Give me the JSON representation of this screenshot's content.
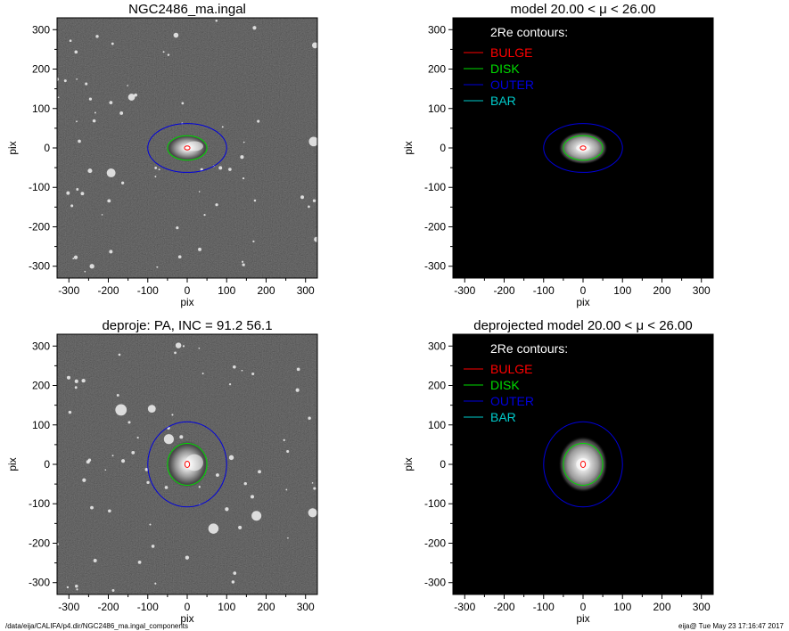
{
  "panels": [
    {
      "id": "observed",
      "title": "NGC2486_ma.ingal",
      "kind": "galaxy-image",
      "show_legend": false,
      "ellipses": {
        "bulge": {
          "a": 7,
          "b": 5
        },
        "disk": {
          "a": 50,
          "b": 31
        },
        "outer": {
          "a": 100,
          "b": 62
        }
      }
    },
    {
      "id": "model",
      "title": "model  20.00 < μ <  26.00",
      "kind": "model-image",
      "show_legend": true,
      "ellipses": {
        "bulge": {
          "a": 7,
          "b": 5
        },
        "disk": {
          "a": 50,
          "b": 31
        },
        "outer": {
          "a": 100,
          "b": 62
        }
      }
    },
    {
      "id": "deprojected",
      "title": "deproje: PA, INC =  91.2    56.1",
      "kind": "galaxy-image",
      "show_legend": false,
      "ellipses": {
        "bulge": {
          "a": 6,
          "b": 8
        },
        "disk": {
          "a": 50,
          "b": 53
        },
        "outer": {
          "a": 100,
          "b": 108
        }
      }
    },
    {
      "id": "deprojected-model",
      "title": "deprojected model  20.00 < μ <  26.00",
      "kind": "model-image",
      "show_legend": true,
      "ellipses": {
        "bulge": {
          "a": 6,
          "b": 8
        },
        "disk": {
          "a": 50,
          "b": 53
        },
        "outer": {
          "a": 100,
          "b": 108
        }
      }
    }
  ],
  "legend": {
    "heading": "2Re contours:",
    "entries": [
      {
        "label": "BULGE",
        "color": "#ff0000"
      },
      {
        "label": "DISK",
        "color": "#00dd00"
      },
      {
        "label": "OUTER",
        "color": "#0000dd"
      },
      {
        "label": "BAR",
        "color": "#00cccc"
      }
    ]
  },
  "chart_data": {
    "type": "heatmap",
    "xlabel": "pix",
    "ylabel": "pix",
    "xlim": [
      -330,
      330
    ],
    "ylim": [
      -330,
      330
    ],
    "ticks": [
      -300,
      -200,
      -100,
      0,
      100,
      200,
      300
    ],
    "tick_labels": [
      "-300",
      "-200",
      "-100",
      "0",
      "100",
      "200",
      "300"
    ]
  },
  "footer": {
    "path": "/data/eija/CALIFA/p4.dir/NGC2486_ma.ingal_components",
    "user_date": "eija@  Tue May 23 17:16:47 2017"
  }
}
